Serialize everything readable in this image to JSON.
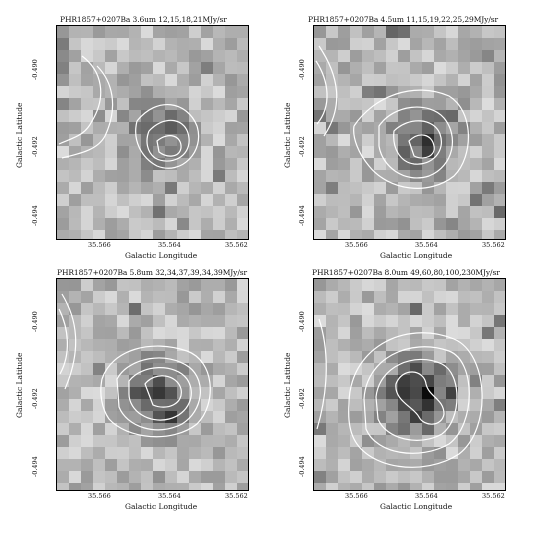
{
  "panels": [
    {
      "title": "PHR1857+0207Ba 3.6um 12,15,18,21MJy/sr",
      "xlabel": "Galactic Longitude",
      "ylabel": "Galactic Latitude",
      "xticks": [
        "35.566",
        "35.564",
        "35.562"
      ],
      "yticks": [
        "-0.490",
        "-0.492",
        "-0.494"
      ]
    },
    {
      "title": "PHR1857+0207Ba 4.5um 11,15,19,22,25,29MJy/sr",
      "xlabel": "Galactic Longitude",
      "ylabel": "Galactic Latitude",
      "xticks": [
        "35.566",
        "35.564",
        "35.562"
      ],
      "yticks": [
        "-0.490",
        "-0.492",
        "-0.494"
      ]
    },
    {
      "title": "PHR1857+0207Ba 5.8um 32,34,37,39,34,39MJy/sr",
      "xlabel": "Galactic Longitude",
      "ylabel": "Galactic Latitude",
      "xticks": [
        "35.566",
        "35.564",
        "35.562"
      ],
      "yticks": [
        "-0.490",
        "-0.492",
        "-0.494"
      ]
    },
    {
      "title": "PHR1857+0207Ba 8.0um 49,60,80,100,230MJy/sr",
      "xlabel": "Galactic Longitude",
      "ylabel": "Galactic Latitude",
      "xticks": [
        "35.566",
        "35.564",
        "35.562"
      ],
      "yticks": [
        "-0.490",
        "-0.492",
        "-0.494"
      ]
    }
  ],
  "colors": {
    "contour": "#ffffff",
    "frame": "#000000",
    "background": "#ffffff"
  }
}
